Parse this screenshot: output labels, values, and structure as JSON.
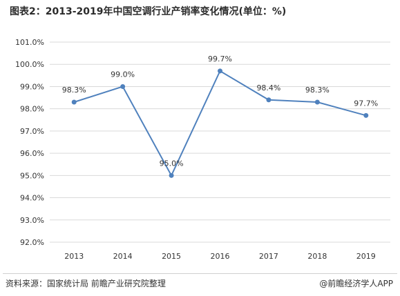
{
  "title": "图表2：2013-2019年中国空调行业产销率变化情况(单位：%)",
  "source": "资料来源：国家统计局 前瞻产业研究院整理",
  "credit": "@前瞻经济学人APP",
  "colors": {
    "line": "#4f81bd",
    "grid": "#d9d9d9",
    "text": "#333333"
  },
  "chart_data": {
    "type": "line",
    "title": "图表2：2013-2019年中国空调行业产销率变化情况(单位：%)",
    "categories": [
      "2013",
      "2014",
      "2015",
      "2016",
      "2017",
      "2018",
      "2019"
    ],
    "series": [
      {
        "values": [
          98.3,
          99.0,
          95.0,
          99.7,
          98.4,
          98.3,
          97.7
        ]
      }
    ],
    "data_labels": [
      "98.3%",
      "99.0%",
      "95.0%",
      "99.7%",
      "98.4%",
      "98.3%",
      "97.7%"
    ],
    "ylim": [
      92.0,
      101.0
    ],
    "yticks": [
      92.0,
      93.0,
      94.0,
      95.0,
      96.0,
      97.0,
      98.0,
      99.0,
      100.0,
      101.0
    ],
    "ytick_labels": [
      "92.0%",
      "93.0%",
      "94.0%",
      "95.0%",
      "96.0%",
      "97.0%",
      "98.0%",
      "99.0%",
      "100.0%",
      "101.0%"
    ],
    "grid": true,
    "legend": "none"
  }
}
